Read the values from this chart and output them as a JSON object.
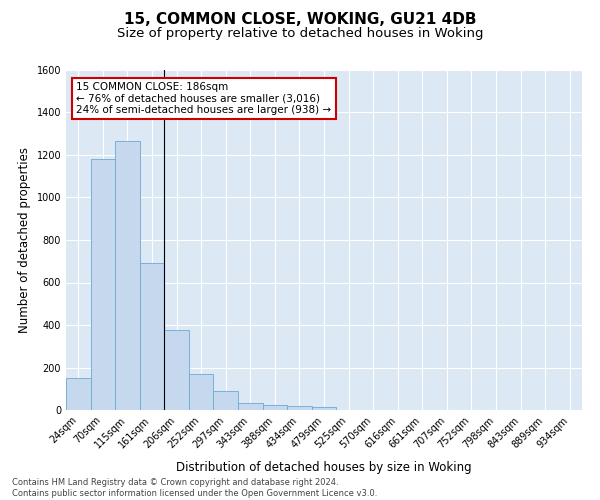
{
  "title": "15, COMMON CLOSE, WOKING, GU21 4DB",
  "subtitle": "Size of property relative to detached houses in Woking",
  "xlabel": "Distribution of detached houses by size in Woking",
  "ylabel": "Number of detached properties",
  "categories": [
    "24sqm",
    "70sqm",
    "115sqm",
    "161sqm",
    "206sqm",
    "252sqm",
    "297sqm",
    "343sqm",
    "388sqm",
    "434sqm",
    "479sqm",
    "525sqm",
    "570sqm",
    "616sqm",
    "661sqm",
    "707sqm",
    "752sqm",
    "798sqm",
    "843sqm",
    "889sqm",
    "934sqm"
  ],
  "values": [
    150,
    1180,
    1265,
    690,
    375,
    170,
    90,
    35,
    25,
    20,
    15,
    0,
    0,
    0,
    0,
    0,
    0,
    0,
    0,
    0,
    0
  ],
  "bar_color": "#c5d8ee",
  "bar_edge_color": "#6aaad4",
  "background_color": "#dce9f5",
  "grid_color": "#ffffff",
  "ylim": [
    0,
    1600
  ],
  "yticks": [
    0,
    200,
    400,
    600,
    800,
    1000,
    1200,
    1400,
    1600
  ],
  "annotation_line1": "15 COMMON CLOSE: 186sqm",
  "annotation_line2": "← 76% of detached houses are smaller (3,016)",
  "annotation_line3": "24% of semi-detached houses are larger (938) →",
  "annotation_box_color": "#ffffff",
  "annotation_box_edge_color": "#cc0000",
  "vline_color": "#000000",
  "vline_x": 3.5,
  "footnote": "Contains HM Land Registry data © Crown copyright and database right 2024.\nContains public sector information licensed under the Open Government Licence v3.0.",
  "title_fontsize": 11,
  "subtitle_fontsize": 9.5,
  "xlabel_fontsize": 8.5,
  "ylabel_fontsize": 8.5,
  "tick_fontsize": 7,
  "annot_fontsize": 7.5,
  "footnote_fontsize": 6
}
